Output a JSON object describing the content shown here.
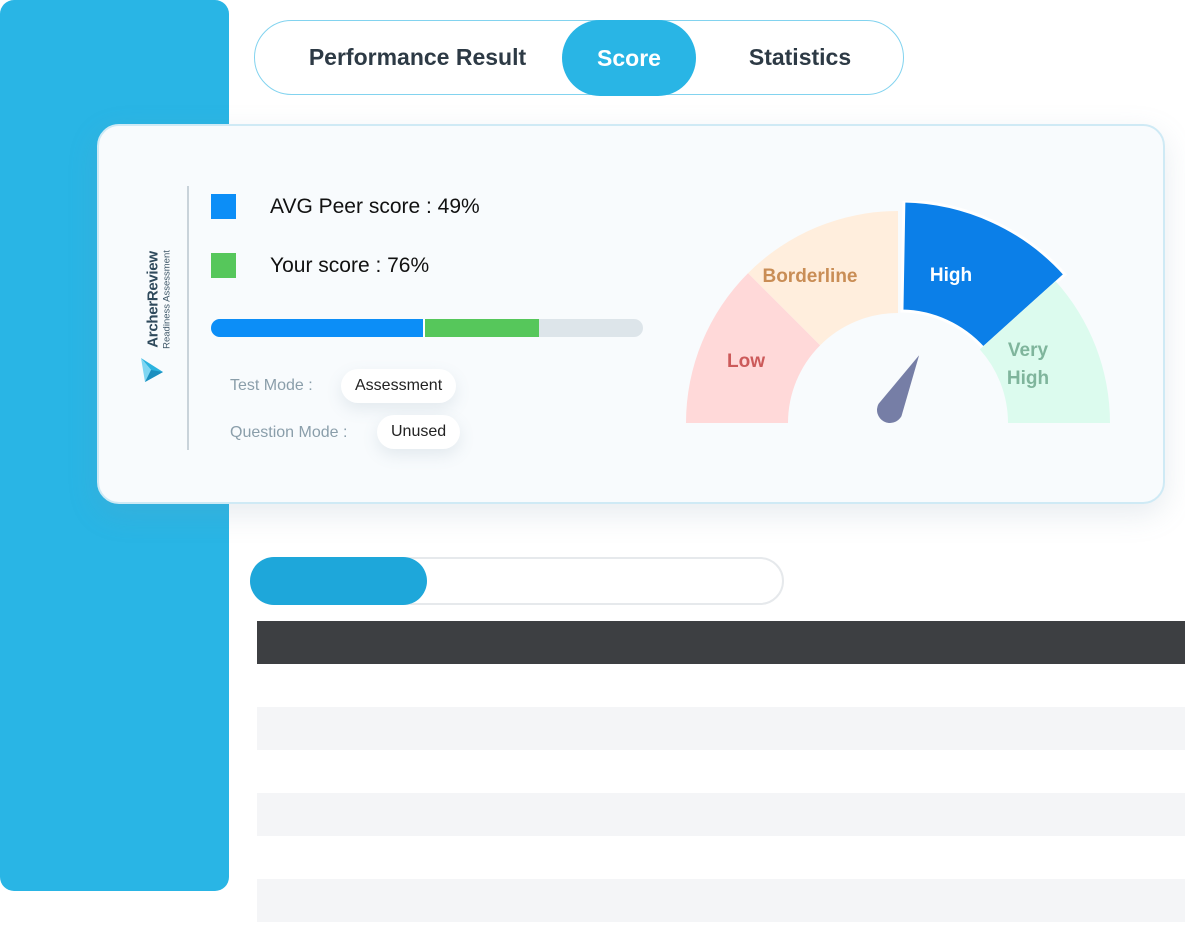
{
  "tabs": [
    {
      "label": "Performance Result",
      "active": false
    },
    {
      "label": "Score",
      "active": true
    },
    {
      "label": "Statistics",
      "active": false
    }
  ],
  "brand": {
    "name": "ArcherReview",
    "subtitle": "Readiness Assessment"
  },
  "legend": {
    "peer": {
      "label": "AVG Peer score : 49%",
      "color": "#0c8ef7"
    },
    "you": {
      "label": "Your score : 76%",
      "color": "#56c75b"
    }
  },
  "scores": {
    "peer_percent": 49,
    "your_percent": 76
  },
  "modes": {
    "test_mode_label": "Test Mode :",
    "test_mode_value": "Assessment",
    "question_mode_label": "Question Mode :",
    "question_mode_value": "Unused"
  },
  "gauge": {
    "segments": [
      {
        "label_lines": [
          "Low"
        ],
        "fill": "#ffd9d9",
        "text_color": "#cc5a5a"
      },
      {
        "label_lines": [
          "Borderline"
        ],
        "fill": "#ffeedd",
        "text_color": "#c98d55"
      },
      {
        "label_lines": [
          "High"
        ],
        "fill": "#0b7fe8",
        "text_color": "#ffffff",
        "highlighted": true
      },
      {
        "label_lines": [
          "Very",
          "High"
        ],
        "fill": "#dcfbee",
        "text_color": "#7fb59c"
      }
    ],
    "needle_color": "#767ea6",
    "pointer_level": "High"
  },
  "colors": {
    "accent": "#29b5e5",
    "header_dark": "#3d3f42"
  }
}
